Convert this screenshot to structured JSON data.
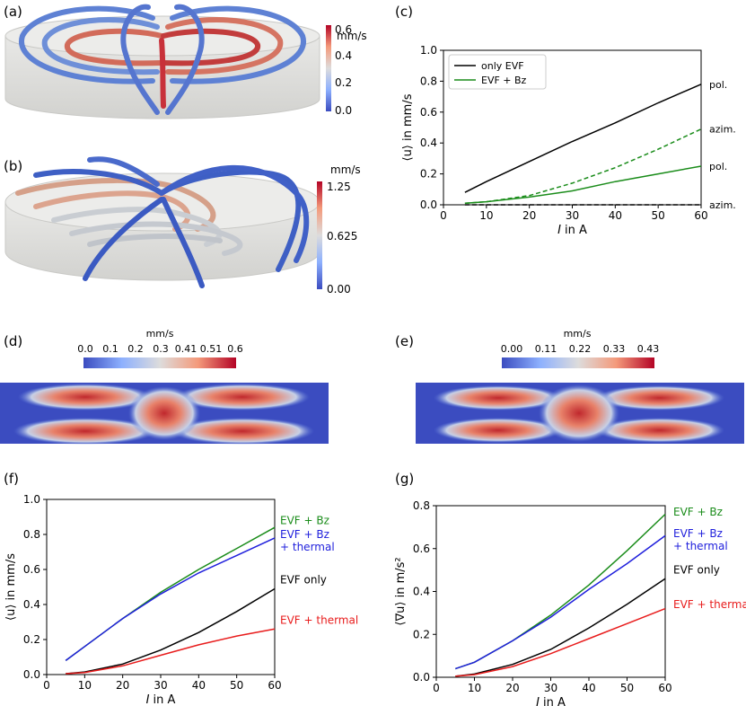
{
  "panel_labels": {
    "a": "(a)",
    "b": "(b)",
    "c": "(c)",
    "d": "(d)",
    "e": "(e)",
    "f": "(f)",
    "g": "(g)"
  },
  "colorbars": {
    "a": {
      "unit": "mm/s",
      "ticks": [
        "0.6",
        "0.4",
        "0.2",
        "0.0"
      ],
      "min": 0,
      "max": 0.6
    },
    "b": {
      "unit": "mm/s",
      "ticks": [
        "1.25",
        "0.625",
        "0.00"
      ],
      "min": 0,
      "max": 1.25
    },
    "d": {
      "unit": "mm/s",
      "ticks": [
        "0.0",
        "0.1",
        "0.2",
        "0.3",
        "0.41",
        "0.51",
        "0.6"
      ]
    },
    "e": {
      "unit": "mm/s",
      "ticks": [
        "0.00",
        "0.11",
        "0.22",
        "0.33",
        "0.43"
      ]
    }
  },
  "colors": {
    "black": "#000000",
    "green": "#1a8c1a",
    "blue": "#1f1fdc",
    "red": "#e81c1c",
    "cool": "#3b4cc0",
    "warm": "#b40426"
  },
  "chart_data": [
    {
      "id": "c",
      "type": "line",
      "xlabel_italic": "I",
      "xlabel_rest": " in A",
      "ylabel": "⟨u⟩ in mm/s",
      "xlim": [
        0,
        60
      ],
      "ylim": [
        0,
        1.0
      ],
      "xticks": [
        0,
        10,
        20,
        30,
        40,
        50,
        60
      ],
      "yticks": [
        0.0,
        0.2,
        0.4,
        0.6,
        0.8,
        1.0
      ],
      "ytick_labels": [
        "0.0",
        "0.2",
        "0.4",
        "0.6",
        "0.8",
        "1.0"
      ],
      "legend": {
        "position": "top-left",
        "entries": [
          {
            "label": "only EVF",
            "color": "#000000"
          },
          {
            "label": "EVF + Bz",
            "color": "#1a8c1a"
          }
        ]
      },
      "series": [
        {
          "color": "#000000",
          "dash": false,
          "x": [
            5,
            10,
            20,
            30,
            40,
            50,
            60
          ],
          "y": [
            0.08,
            0.15,
            0.28,
            0.41,
            0.53,
            0.66,
            0.78
          ]
        },
        {
          "color": "#000000",
          "dash": true,
          "x": [
            5,
            10,
            20,
            30,
            40,
            50,
            60
          ],
          "y": [
            0.0,
            0.0,
            0.0,
            0.0,
            0.0,
            0.0,
            0.0
          ]
        },
        {
          "color": "#1a8c1a",
          "dash": false,
          "x": [
            5,
            10,
            20,
            30,
            40,
            50,
            60
          ],
          "y": [
            0.01,
            0.02,
            0.05,
            0.09,
            0.15,
            0.2,
            0.25
          ]
        },
        {
          "color": "#1a8c1a",
          "dash": true,
          "x": [
            5,
            10,
            20,
            30,
            40,
            50,
            60
          ],
          "y": [
            0.01,
            0.02,
            0.06,
            0.14,
            0.24,
            0.36,
            0.49
          ]
        }
      ],
      "annotations": [
        {
          "text": "pol.",
          "y": 0.78
        },
        {
          "text": "azim.",
          "y": 0.49
        },
        {
          "text": "pol.",
          "y": 0.25
        },
        {
          "text": "azim.",
          "y": 0.0
        }
      ]
    },
    {
      "id": "f",
      "type": "line",
      "xlabel_italic": "I",
      "xlabel_rest": " in A",
      "ylabel": "⟨u⟩ in mm/s",
      "xlim": [
        0,
        60
      ],
      "ylim": [
        0,
        1.0
      ],
      "xticks": [
        0,
        10,
        20,
        30,
        40,
        50,
        60
      ],
      "yticks": [
        0.0,
        0.2,
        0.4,
        0.6,
        0.8,
        1.0
      ],
      "ytick_labels": [
        "0.0",
        "0.2",
        "0.4",
        "0.6",
        "0.8",
        "1.0"
      ],
      "series": [
        {
          "color": "#1a8c1a",
          "dash": false,
          "x": [
            5,
            10,
            20,
            30,
            40,
            50,
            60
          ],
          "y": [
            0.08,
            0.16,
            0.32,
            0.47,
            0.6,
            0.72,
            0.84
          ]
        },
        {
          "color": "#1f1fdc",
          "dash": false,
          "x": [
            5,
            10,
            20,
            30,
            40,
            50,
            60
          ],
          "y": [
            0.08,
            0.16,
            0.32,
            0.46,
            0.58,
            0.68,
            0.78
          ]
        },
        {
          "color": "#000000",
          "dash": false,
          "x": [
            5,
            10,
            20,
            30,
            40,
            50,
            60
          ],
          "y": [
            0.005,
            0.015,
            0.06,
            0.14,
            0.24,
            0.36,
            0.49
          ]
        },
        {
          "color": "#e81c1c",
          "dash": false,
          "x": [
            5,
            10,
            20,
            30,
            40,
            50,
            60
          ],
          "y": [
            0.005,
            0.012,
            0.05,
            0.11,
            0.17,
            0.22,
            0.26
          ]
        }
      ],
      "annotations": [
        {
          "lines": [
            "EVF + Bz"
          ],
          "color": "#1a8c1a",
          "y": 0.88
        },
        {
          "lines": [
            "EVF + Bz",
            "+ thermal"
          ],
          "color": "#1f1fdc",
          "y": 0.8
        },
        {
          "lines": [
            "EVF only"
          ],
          "color": "#000000",
          "y": 0.54
        },
        {
          "lines": [
            "EVF + thermal"
          ],
          "color": "#e81c1c",
          "y": 0.31
        }
      ]
    },
    {
      "id": "g",
      "type": "line",
      "xlabel_italic": "I",
      "xlabel_rest": " in A",
      "ylabel": "⟨∇u⟩ in m/s²",
      "xlim": [
        0,
        60
      ],
      "ylim": [
        0,
        0.8
      ],
      "xticks": [
        0,
        10,
        20,
        30,
        40,
        50,
        60
      ],
      "yticks": [
        0.0,
        0.2,
        0.4,
        0.6,
        0.8
      ],
      "ytick_labels": [
        "0.0",
        "0.2",
        "0.4",
        "0.6",
        "0.8"
      ],
      "series": [
        {
          "color": "#1a8c1a",
          "dash": false,
          "x": [
            5,
            10,
            20,
            30,
            40,
            50,
            60
          ],
          "y": [
            0.04,
            0.07,
            0.17,
            0.29,
            0.43,
            0.59,
            0.76
          ]
        },
        {
          "color": "#1f1fdc",
          "dash": false,
          "x": [
            5,
            10,
            20,
            30,
            40,
            50,
            60
          ],
          "y": [
            0.04,
            0.07,
            0.17,
            0.28,
            0.41,
            0.53,
            0.66
          ]
        },
        {
          "color": "#000000",
          "dash": false,
          "x": [
            5,
            10,
            20,
            30,
            40,
            50,
            60
          ],
          "y": [
            0.005,
            0.015,
            0.06,
            0.13,
            0.23,
            0.34,
            0.46
          ]
        },
        {
          "color": "#e81c1c",
          "dash": false,
          "x": [
            5,
            10,
            20,
            30,
            40,
            50,
            60
          ],
          "y": [
            0.005,
            0.012,
            0.05,
            0.11,
            0.18,
            0.25,
            0.32
          ]
        }
      ],
      "annotations": [
        {
          "lines": [
            "EVF + Bz"
          ],
          "color": "#1a8c1a",
          "y": 0.77
        },
        {
          "lines": [
            "EVF + Bz",
            "+ thermal"
          ],
          "color": "#1f1fdc",
          "y": 0.67
        },
        {
          "lines": [
            "EVF only"
          ],
          "color": "#000000",
          "y": 0.5
        },
        {
          "lines": [
            "EVF + thermal"
          ],
          "color": "#e81c1c",
          "y": 0.34
        }
      ]
    }
  ]
}
